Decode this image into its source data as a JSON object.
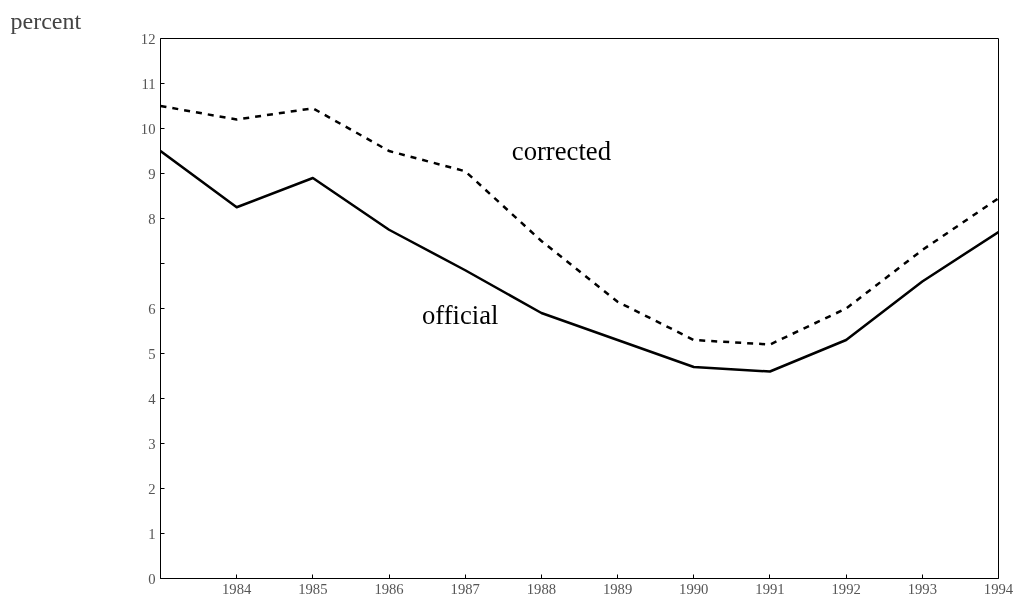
{
  "chart_data": {
    "type": "line",
    "ylabel": "percent",
    "x": [
      1983,
      1984,
      1985,
      1986,
      1987,
      1988,
      1989,
      1990,
      1991,
      1992,
      1993,
      1994
    ],
    "series": [
      {
        "name": "corrected",
        "color": "#000000",
        "line_style": "dashed",
        "values": [
          10.5,
          10.2,
          10.45,
          9.5,
          9.05,
          7.5,
          6.15,
          5.3,
          5.2,
          6.0,
          7.3,
          8.45
        ]
      },
      {
        "name": "official",
        "color": "#000000",
        "line_style": "solid",
        "values": [
          9.5,
          8.25,
          8.9,
          7.75,
          6.85,
          5.9,
          5.3,
          4.7,
          4.6,
          5.3,
          6.6,
          7.7
        ]
      }
    ],
    "xlim": [
      1983,
      1994
    ],
    "ylim": [
      0,
      12
    ],
    "xticks": [
      {
        "value": 1983,
        "label": null
      },
      1984,
      1985,
      1986,
      1987,
      1988,
      1989,
      1990,
      1991,
      1992,
      1993,
      1994
    ],
    "yticks": [
      0,
      1,
      2,
      3,
      4,
      5,
      6,
      {
        "value": 7,
        "label": null
      },
      8,
      9,
      10,
      11,
      12
    ],
    "grid": false,
    "legend": false,
    "marker": "none"
  }
}
